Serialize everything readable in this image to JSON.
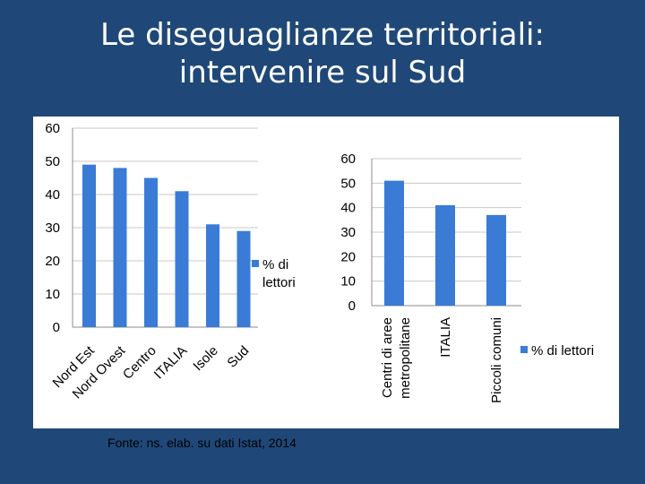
{
  "slide": {
    "title_line1": "Le diseguaglianze territoriali:",
    "title_line2": "intervenire sul Sud",
    "source": "Fonte: ns. elab. su dati Istat, 2014"
  },
  "colors": {
    "background": "#1f4878",
    "panel": "#ffffff",
    "bar": "#3a7bd5",
    "text": "#000000",
    "title": "#ffffff"
  },
  "chart_data": [
    {
      "type": "bar",
      "categories": [
        "Nord Est",
        "Nord Ovest",
        "Centro",
        "ITALIA",
        "Isole",
        "Sud"
      ],
      "series": [
        {
          "name": "% di lettori",
          "values": [
            49,
            48,
            45,
            41,
            31,
            29
          ]
        }
      ],
      "legend_lines": [
        "% di",
        "lettori"
      ],
      "yticks": [
        0,
        10,
        20,
        30,
        40,
        50,
        60
      ],
      "ylim": [
        0,
        60
      ],
      "grid": true,
      "legend": "right"
    },
    {
      "type": "bar",
      "categories": [
        "Centri di aree metropolitane",
        "ITALIA",
        "Piccoli comuni"
      ],
      "category_lines": [
        [
          "Centri di aree",
          "metropolitane"
        ],
        [
          "ITALIA"
        ],
        [
          "Piccoli comuni"
        ]
      ],
      "series": [
        {
          "name": "% di lettori",
          "values": [
            51,
            41,
            37
          ]
        }
      ],
      "legend_lines": [
        "% di lettori"
      ],
      "yticks": [
        0,
        10,
        20,
        30,
        40,
        50,
        60
      ],
      "ylim": [
        0,
        60
      ],
      "grid": true,
      "legend": "right"
    }
  ]
}
